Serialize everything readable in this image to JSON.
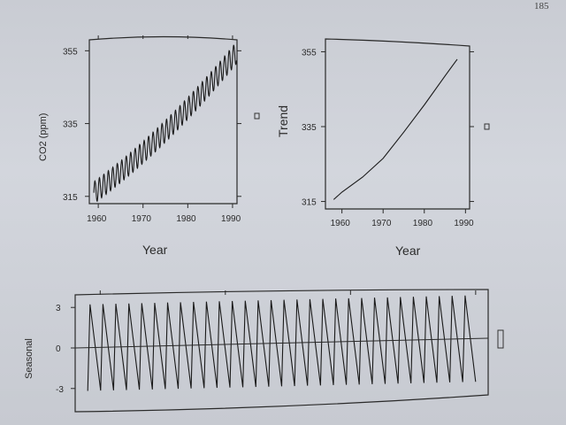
{
  "page": {
    "number": "185"
  },
  "chart_data": [
    {
      "id": "co2",
      "type": "line",
      "title": "",
      "xlabel": "Year",
      "ylabel": "CO2 (ppm)",
      "xlim": [
        1958,
        1991
      ],
      "ylim": [
        313,
        358
      ],
      "xticks": [
        1960,
        1970,
        1980,
        1990
      ],
      "yticks": [
        315,
        335,
        355
      ],
      "series": [
        {
          "x_start": 1959.0,
          "x_end": 1990.9,
          "trend_start": 316.0,
          "trend_end": 354.5,
          "seasonal_amplitude": 3.0,
          "cycles_per_year": 1
        }
      ]
    },
    {
      "id": "trend",
      "type": "line",
      "title": "",
      "xlabel": "Year",
      "ylabel": "Trend",
      "xlim": [
        1956,
        1991
      ],
      "ylim": [
        313,
        357
      ],
      "xticks": [
        1960,
        1970,
        1980,
        1990
      ],
      "yticks": [
        315,
        335,
        355
      ],
      "series": [
        {
          "x": [
            1958,
            1960,
            1965,
            1970,
            1975,
            1980,
            1985,
            1988
          ],
          "y": [
            315.5,
            317.5,
            321.5,
            326.5,
            333.5,
            340.8,
            348.5,
            353.0
          ]
        }
      ]
    },
    {
      "id": "seasonal",
      "type": "line",
      "title": "",
      "xlabel": "",
      "ylabel": "Seasonal",
      "xlim": [
        1958,
        1991
      ],
      "ylim": [
        -3.9,
        3.9
      ],
      "yticks": [
        3,
        0,
        -3
      ],
      "ytick_labels": [
        "3",
        "0",
        "-3"
      ],
      "series": [
        {
          "x_start": 1959.0,
          "x_end": 1990.0,
          "amplitude": 3.2,
          "cycles": 30
        }
      ]
    }
  ]
}
